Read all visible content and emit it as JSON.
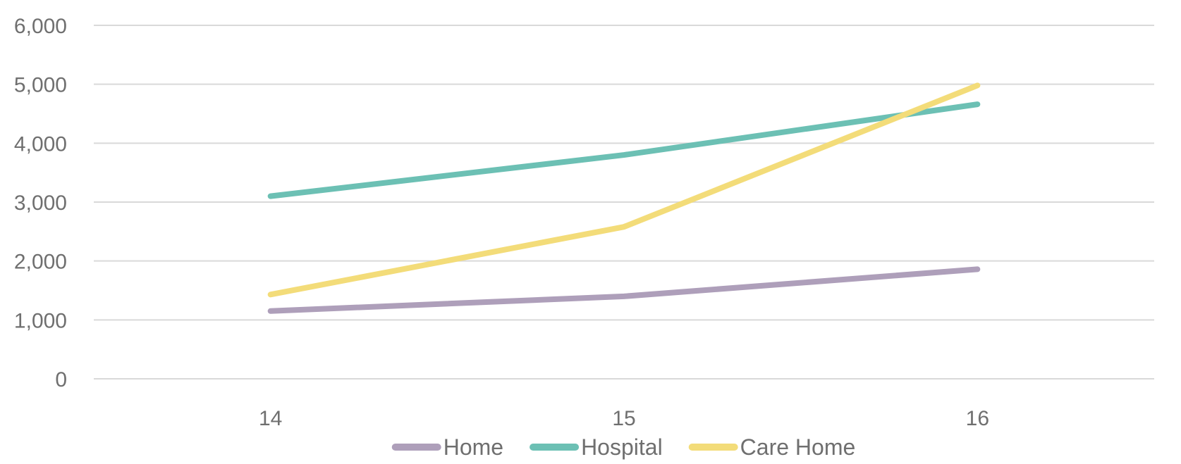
{
  "chart_data": {
    "type": "line",
    "title": "",
    "xlabel": "",
    "ylabel": "",
    "categories": [
      "14",
      "15",
      "16"
    ],
    "ylim": [
      0,
      6000
    ],
    "y_ticks": [
      0,
      1000,
      2000,
      3000,
      4000,
      5000,
      6000
    ],
    "y_tick_labels": [
      "0",
      "1,000",
      "2,000",
      "3,000",
      "4,000",
      "5,000",
      "6,000"
    ],
    "grid": true,
    "legend_position": "bottom",
    "series": [
      {
        "name": "Home",
        "color": "#ae9fba",
        "values": [
          1150,
          1400,
          1860
        ]
      },
      {
        "name": "Hospital",
        "color": "#6cc0b4",
        "values": [
          3100,
          3800,
          4660
        ]
      },
      {
        "name": "Care Home",
        "color": "#f3dc79",
        "values": [
          1430,
          2580,
          4980
        ]
      }
    ]
  }
}
